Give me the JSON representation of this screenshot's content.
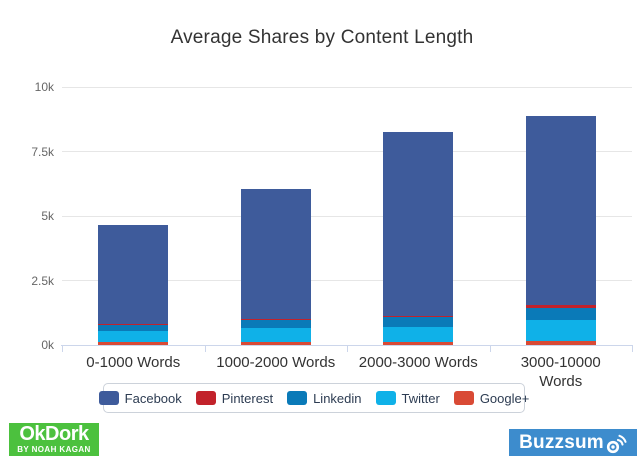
{
  "chart_data": {
    "type": "bar",
    "stacked": true,
    "title": "Average Shares by Content Length",
    "categories": [
      "0-1000 Words",
      "1000-2000 Words",
      "2000-3000 Words",
      "3000-10000 Words"
    ],
    "categories_display": [
      "0-1000 Words",
      "1000-2000 Words",
      "2000-3000 Words",
      "3000-10000\nWords"
    ],
    "series": [
      {
        "name": "Facebook",
        "color": "#3e5b9b",
        "values": [
          3860,
          5040,
          7150,
          7330
        ]
      },
      {
        "name": "Pinterest",
        "color": "#c2222b",
        "values": [
          20,
          25,
          30,
          130
        ]
      },
      {
        "name": "Linkedin",
        "color": "#0a7ab8",
        "values": [
          250,
          330,
          380,
          470
        ]
      },
      {
        "name": "Twitter",
        "color": "#0fb1e8",
        "values": [
          430,
          530,
          590,
          800
        ]
      },
      {
        "name": "Google+",
        "color": "#d94a35",
        "values": [
          100,
          110,
          120,
          160
        ]
      }
    ],
    "totals": [
      4660,
      6035,
      8270,
      8890
    ],
    "stack_order_bottom_to_top": [
      "Google+",
      "Twitter",
      "Linkedin",
      "Pinterest",
      "Facebook"
    ],
    "xlabel": "",
    "ylabel": "",
    "ylim": [
      0,
      10000
    ],
    "yticks": [
      {
        "label": "0k",
        "value": 0
      },
      {
        "label": "2.5k",
        "value": 2500
      },
      {
        "label": "5k",
        "value": 5000
      },
      {
        "label": "7.5k",
        "value": 7500
      },
      {
        "label": "10k",
        "value": 10000
      }
    ],
    "grid": true,
    "legend_position": "bottom",
    "segment_border_color": "#ffffff",
    "gridline_color": "#e6e6e6",
    "axis_line_color": "#ccd6eb",
    "xlabel_color": "#333333",
    "ytick_color": "#666666",
    "title_color": "#333333",
    "legend_text_color": "#2d3c52"
  },
  "footer": {
    "okdork": {
      "line1": "OkDork",
      "line2": "BY NOAH KAGAN",
      "bg_color": "#4cc13e",
      "text_color": "#ffffff"
    },
    "buzzsumo": {
      "text": "Buzzsumo",
      "bg_color": "#3d8ccd",
      "text_color": "#ffffff"
    }
  }
}
